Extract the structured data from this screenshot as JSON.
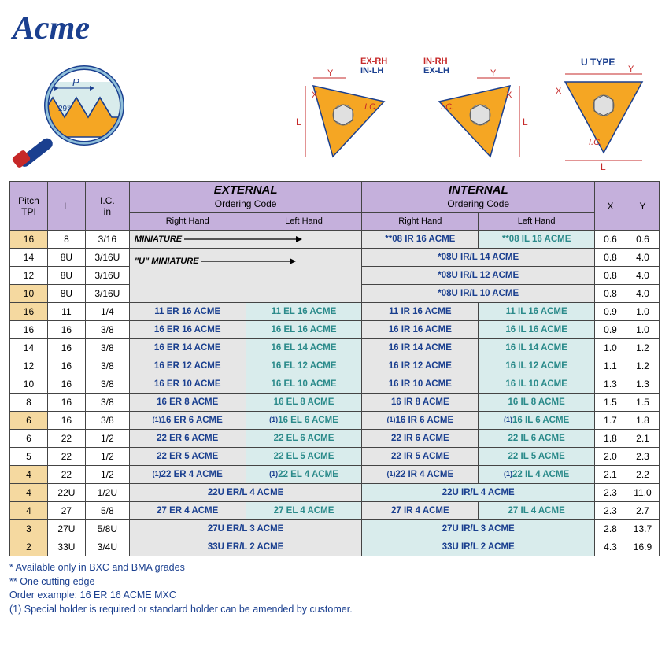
{
  "title": "Acme",
  "diagram_labels": {
    "pitch": "P",
    "angle": "29°",
    "ex_rh": "EX-RH",
    "in_lh": "IN-LH",
    "in_rh": "IN-RH",
    "ex_lh": "EX-LH",
    "u_type": "U  TYPE",
    "Y": "Y",
    "X": "X",
    "L": "L",
    "IC": "I.C."
  },
  "headers": {
    "pitch": "Pitch",
    "tpi": "TPI",
    "L": "L",
    "IC": "I.C.",
    "in": "in",
    "external": "EXTERNAL",
    "internal": "INTERNAL",
    "ordering": "Ordering Code",
    "rh": "Right Hand",
    "lh": "Left Hand",
    "X": "X",
    "Y": "Y"
  },
  "mini": {
    "label1": "MINIATURE",
    "label2": "\"U\" MINIATURE"
  },
  "rows": [
    {
      "bg": "tan",
      "tpi": "16",
      "L": "8",
      "ic": "3/16",
      "ext_span": "mini1",
      "int_rh": "**08 IR 16  ACME",
      "int_lh": "**08 IL 16 ACME",
      "x": "0.6",
      "y": "0.6"
    },
    {
      "bg": "",
      "tpi": "14",
      "L": "8U",
      "ic": "3/16U",
      "ext_span": "mini2",
      "int_span": "*08U IR/L 14 ACME",
      "x": "0.8",
      "y": "4.0"
    },
    {
      "bg": "",
      "tpi": "12",
      "L": "8U",
      "ic": "3/16U",
      "ext_span": "mini2b",
      "int_span": "*08U IR/L 12 ACME",
      "x": "0.8",
      "y": "4.0"
    },
    {
      "bg": "tan",
      "tpi": "10",
      "L": "8U",
      "ic": "3/16U",
      "ext_span": "mini2c",
      "int_span": "*08U IR/L 10 ACME",
      "x": "0.8",
      "y": "4.0"
    },
    {
      "bg": "tan",
      "tpi": "16",
      "L": "11",
      "ic": "1/4",
      "er": "11 ER 16  ACME",
      "el": "11 EL 16  ACME",
      "ir": "11 IR 16  ACME",
      "il": "11 IL 16  ACME",
      "x": "0.9",
      "y": "1.0"
    },
    {
      "bg": "",
      "tpi": "16",
      "L": "16",
      "ic": "3/8",
      "er": "16 ER 16  ACME",
      "el": "16 EL 16  ACME",
      "ir": "16 IR 16  ACME",
      "il": "16 IL 16  ACME",
      "x": "0.9",
      "y": "1.0"
    },
    {
      "bg": "",
      "tpi": "14",
      "L": "16",
      "ic": "3/8",
      "er": "16 ER 14  ACME",
      "el": "16 EL 14  ACME",
      "ir": "16 IR 14  ACME",
      "il": "16 IL 14  ACME",
      "x": "1.0",
      "y": "1.2"
    },
    {
      "bg": "",
      "tpi": "12",
      "L": "16",
      "ic": "3/8",
      "er": "16 ER 12  ACME",
      "el": "16 EL 12  ACME",
      "ir": "16 IR 12  ACME",
      "il": "16 IL 12  ACME",
      "x": "1.1",
      "y": "1.2"
    },
    {
      "bg": "",
      "tpi": "10",
      "L": "16",
      "ic": "3/8",
      "er": "16 ER 10  ACME",
      "el": "16 EL 10  ACME",
      "ir": "16 IR 10  ACME",
      "il": "16 IL 10  ACME",
      "x": "1.3",
      "y": "1.3"
    },
    {
      "bg": "",
      "tpi": "8",
      "L": "16",
      "ic": "3/8",
      "er": "16 ER  8  ACME",
      "el": "16 EL  8  ACME",
      "ir": "16 IR  8  ACME",
      "il": "16 IL  8  ACME",
      "x": "1.5",
      "y": "1.5"
    },
    {
      "bg": "tan",
      "tpi": "6",
      "L": "16",
      "ic": "3/8",
      "pre": "(1)",
      "er": "16 ER  6  ACME",
      "el": "16 EL  6  ACME",
      "ir": "16 IR  6  ACME",
      "il": "16 IL  6  ACME",
      "x": "1.7",
      "y": "1.8"
    },
    {
      "bg": "",
      "tpi": "6",
      "L": "22",
      "ic": "1/2",
      "er": "22 ER  6  ACME",
      "el": "22 EL  6  ACME",
      "ir": "22 IR  6  ACME",
      "il": "22 IL  6  ACME",
      "x": "1.8",
      "y": "2.1"
    },
    {
      "bg": "",
      "tpi": "5",
      "L": "22",
      "ic": "1/2",
      "er": "22 ER  5  ACME",
      "el": "22 EL  5  ACME",
      "ir": "22 IR  5  ACME",
      "il": "22 IL  5  ACME",
      "x": "2.0",
      "y": "2.3"
    },
    {
      "bg": "tan",
      "tpi": "4",
      "L": "22",
      "ic": "1/2",
      "pre": "(1)",
      "er": "22 ER  4  ACME",
      "el": "22 EL  4  ACME",
      "ir": "22 IR  4  ACME",
      "il": "22 IL  4  ACME",
      "x": "2.1",
      "y": "2.2"
    },
    {
      "bg": "tan",
      "tpi": "4",
      "L": "22U",
      "ic": "1/2U",
      "ext_merged": "22U ER/L 4 ACME",
      "int_merged": "22U IR/L 4 ACME",
      "x": "2.3",
      "y": "11.0"
    },
    {
      "bg": "tan",
      "tpi": "4",
      "L": "27",
      "ic": "5/8",
      "er": "27 ER  4  ACME",
      "el": "27 EL  4  ACME",
      "ir": "27 IR  4  ACME",
      "il": "27 IL  4  ACME",
      "x": "2.3",
      "y": "2.7"
    },
    {
      "bg": "tan",
      "tpi": "3",
      "L": "27U",
      "ic": "5/8U",
      "ext_merged": "27U ER/L 3 ACME",
      "int_merged": "27U IR/L 3 ACME",
      "x": "2.8",
      "y": "13.7"
    },
    {
      "bg": "tan",
      "tpi": "2",
      "L": "33U",
      "ic": "3/4U",
      "ext_merged": "33U ER/L 2 ACME",
      "int_merged": "33U IR/L 2 ACME",
      "x": "4.3",
      "y": "16.9"
    }
  ],
  "footnotes": {
    "f1": "* Available only in BXC and BMA grades",
    "f2": "** One cutting edge",
    "f3": "Order example: 16 ER 16 ACME MXC",
    "f4": "(1) Special holder is required or standard holder can be amended by customer."
  },
  "colors": {
    "purple": "#c5b0dc",
    "tan": "#f5d9a0",
    "gray": "#e6e6e6",
    "bluelt": "#d9ecec",
    "navy": "#1a3f8f",
    "teal": "#2a8a8a",
    "red": "#c62828",
    "orange": "#f5a623"
  },
  "col_widths": [
    "48",
    "48",
    "56",
    "148",
    "148",
    "148",
    "148",
    "40",
    "42"
  ]
}
